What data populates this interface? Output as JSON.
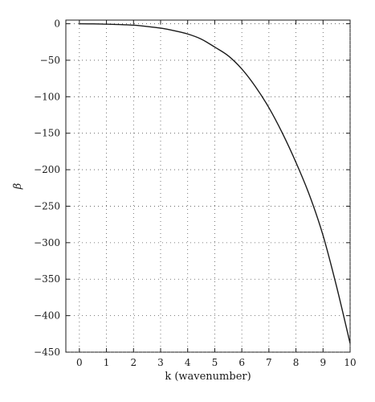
{
  "chart_data": {
    "type": "line",
    "xlabel": "k (wavenumber)",
    "ylabel": "β",
    "xlim": [
      -0.5,
      10
    ],
    "ylim": [
      -450,
      5
    ],
    "x_ticks": [
      0,
      1,
      2,
      3,
      4,
      5,
      6,
      7,
      8,
      9,
      10
    ],
    "y_ticks": [
      0,
      -50,
      -100,
      -150,
      -200,
      -250,
      -300,
      -350,
      -400,
      -450
    ],
    "x_tick_labels": [
      "0",
      "1",
      "2",
      "3",
      "4",
      "5",
      "6",
      "7",
      "8",
      "9",
      "10"
    ],
    "y_tick_labels": [
      "0",
      "−50",
      "−100",
      "−150",
      "−200",
      "−250",
      "−300",
      "−350",
      "−400",
      "−450"
    ],
    "grid": true,
    "grid_style": "dotted",
    "series": [
      {
        "color": "#1a1a1a",
        "x": [
          0,
          0.5,
          1,
          1.5,
          2,
          2.5,
          3,
          3.5,
          4,
          4.5,
          5,
          5.5,
          6,
          6.5,
          7,
          7.5,
          8,
          8.5,
          9,
          9.5,
          10
        ],
        "y": [
          0,
          -0.2,
          -0.6,
          -1.1,
          -2,
          -3.7,
          -6,
          -9.5,
          -14,
          -21,
          -32,
          -44,
          -62,
          -86,
          -115,
          -150,
          -190,
          -235,
          -290,
          -360,
          -438
        ]
      }
    ]
  }
}
